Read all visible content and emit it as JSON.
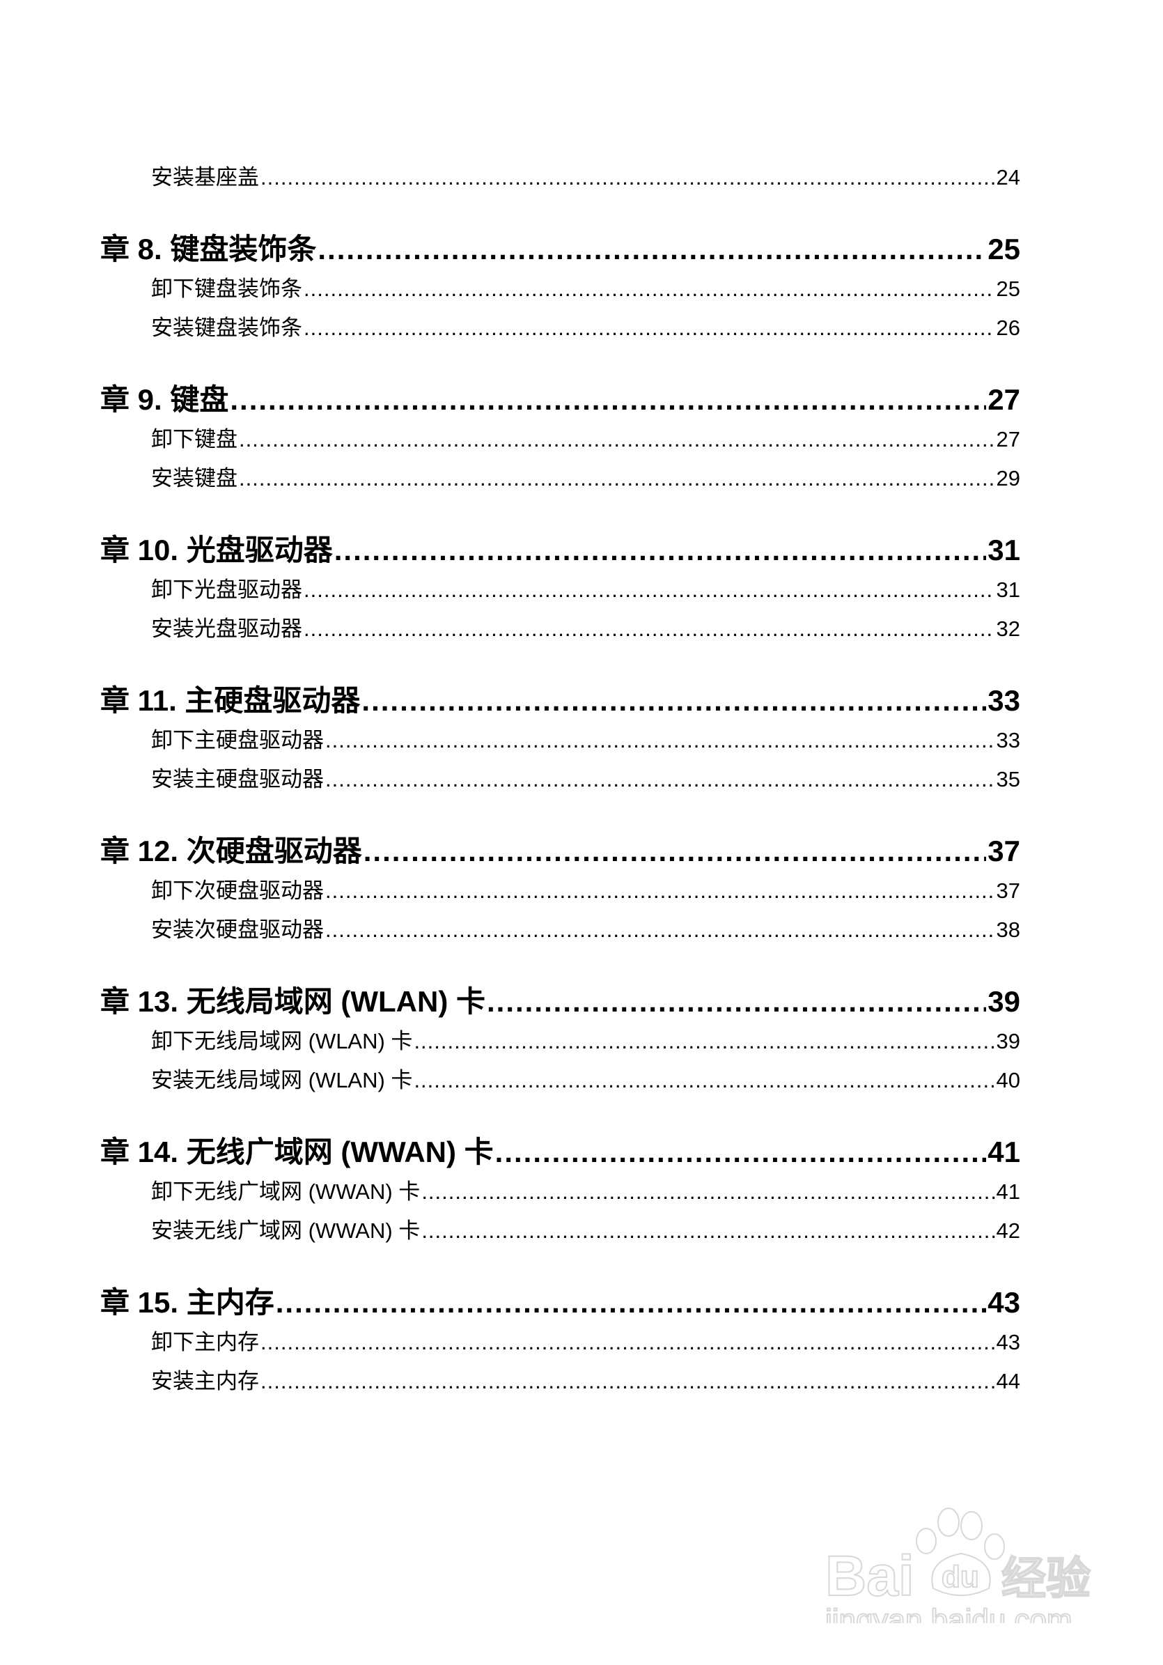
{
  "toc": [
    {
      "level": "sub",
      "title": "安装基座盖",
      "page": "24"
    },
    {
      "level": "chapter",
      "title": "章 8. 键盘装饰条",
      "page": "25"
    },
    {
      "level": "sub",
      "title": "卸下键盘装饰条",
      "page": "25"
    },
    {
      "level": "sub",
      "title": "安装键盘装饰条",
      "page": "26"
    },
    {
      "level": "chapter",
      "title": "章 9. 键盘",
      "page": "27"
    },
    {
      "level": "sub",
      "title": "卸下键盘",
      "page": "27"
    },
    {
      "level": "sub",
      "title": "安装键盘",
      "page": "29"
    },
    {
      "level": "chapter",
      "title": "章 10. 光盘驱动器",
      "page": "31"
    },
    {
      "level": "sub",
      "title": "卸下光盘驱动器",
      "page": "31"
    },
    {
      "level": "sub",
      "title": "安装光盘驱动器",
      "page": "32"
    },
    {
      "level": "chapter",
      "title": "章 11. 主硬盘驱动器",
      "page": "33"
    },
    {
      "level": "sub",
      "title": "卸下主硬盘驱动器",
      "page": "33"
    },
    {
      "level": "sub",
      "title": "安装主硬盘驱动器",
      "page": "35"
    },
    {
      "level": "chapter",
      "title": "章 12. 次硬盘驱动器",
      "page": "37"
    },
    {
      "level": "sub",
      "title": "卸下次硬盘驱动器",
      "page": "37"
    },
    {
      "level": "sub",
      "title": "安装次硬盘驱动器",
      "page": "38"
    },
    {
      "level": "chapter",
      "title": "章 13. 无线局域网 (WLAN) 卡",
      "page": "39"
    },
    {
      "level": "sub",
      "title": "卸下无线局域网 (WLAN) 卡",
      "page": "39"
    },
    {
      "level": "sub",
      "title": "安装无线局域网 (WLAN) 卡",
      "page": "40"
    },
    {
      "level": "chapter",
      "title": "章 14. 无线广域网 (WWAN) 卡",
      "page": "41"
    },
    {
      "level": "sub",
      "title": "卸下无线广域网 (WWAN) 卡",
      "page": "41"
    },
    {
      "level": "sub",
      "title": "安装无线广域网 (WWAN) 卡",
      "page": "42"
    },
    {
      "level": "chapter",
      "title": "章 15. 主内存",
      "page": "43"
    },
    {
      "level": "sub",
      "title": "卸下主内存",
      "page": "43"
    },
    {
      "level": "sub",
      "title": "安装主内存",
      "page": "44"
    }
  ],
  "watermark": {
    "logo": "Baidu",
    "logo_cn": "经验",
    "url": "jingyan.baidu.com",
    "color": "#e6e6e6"
  }
}
